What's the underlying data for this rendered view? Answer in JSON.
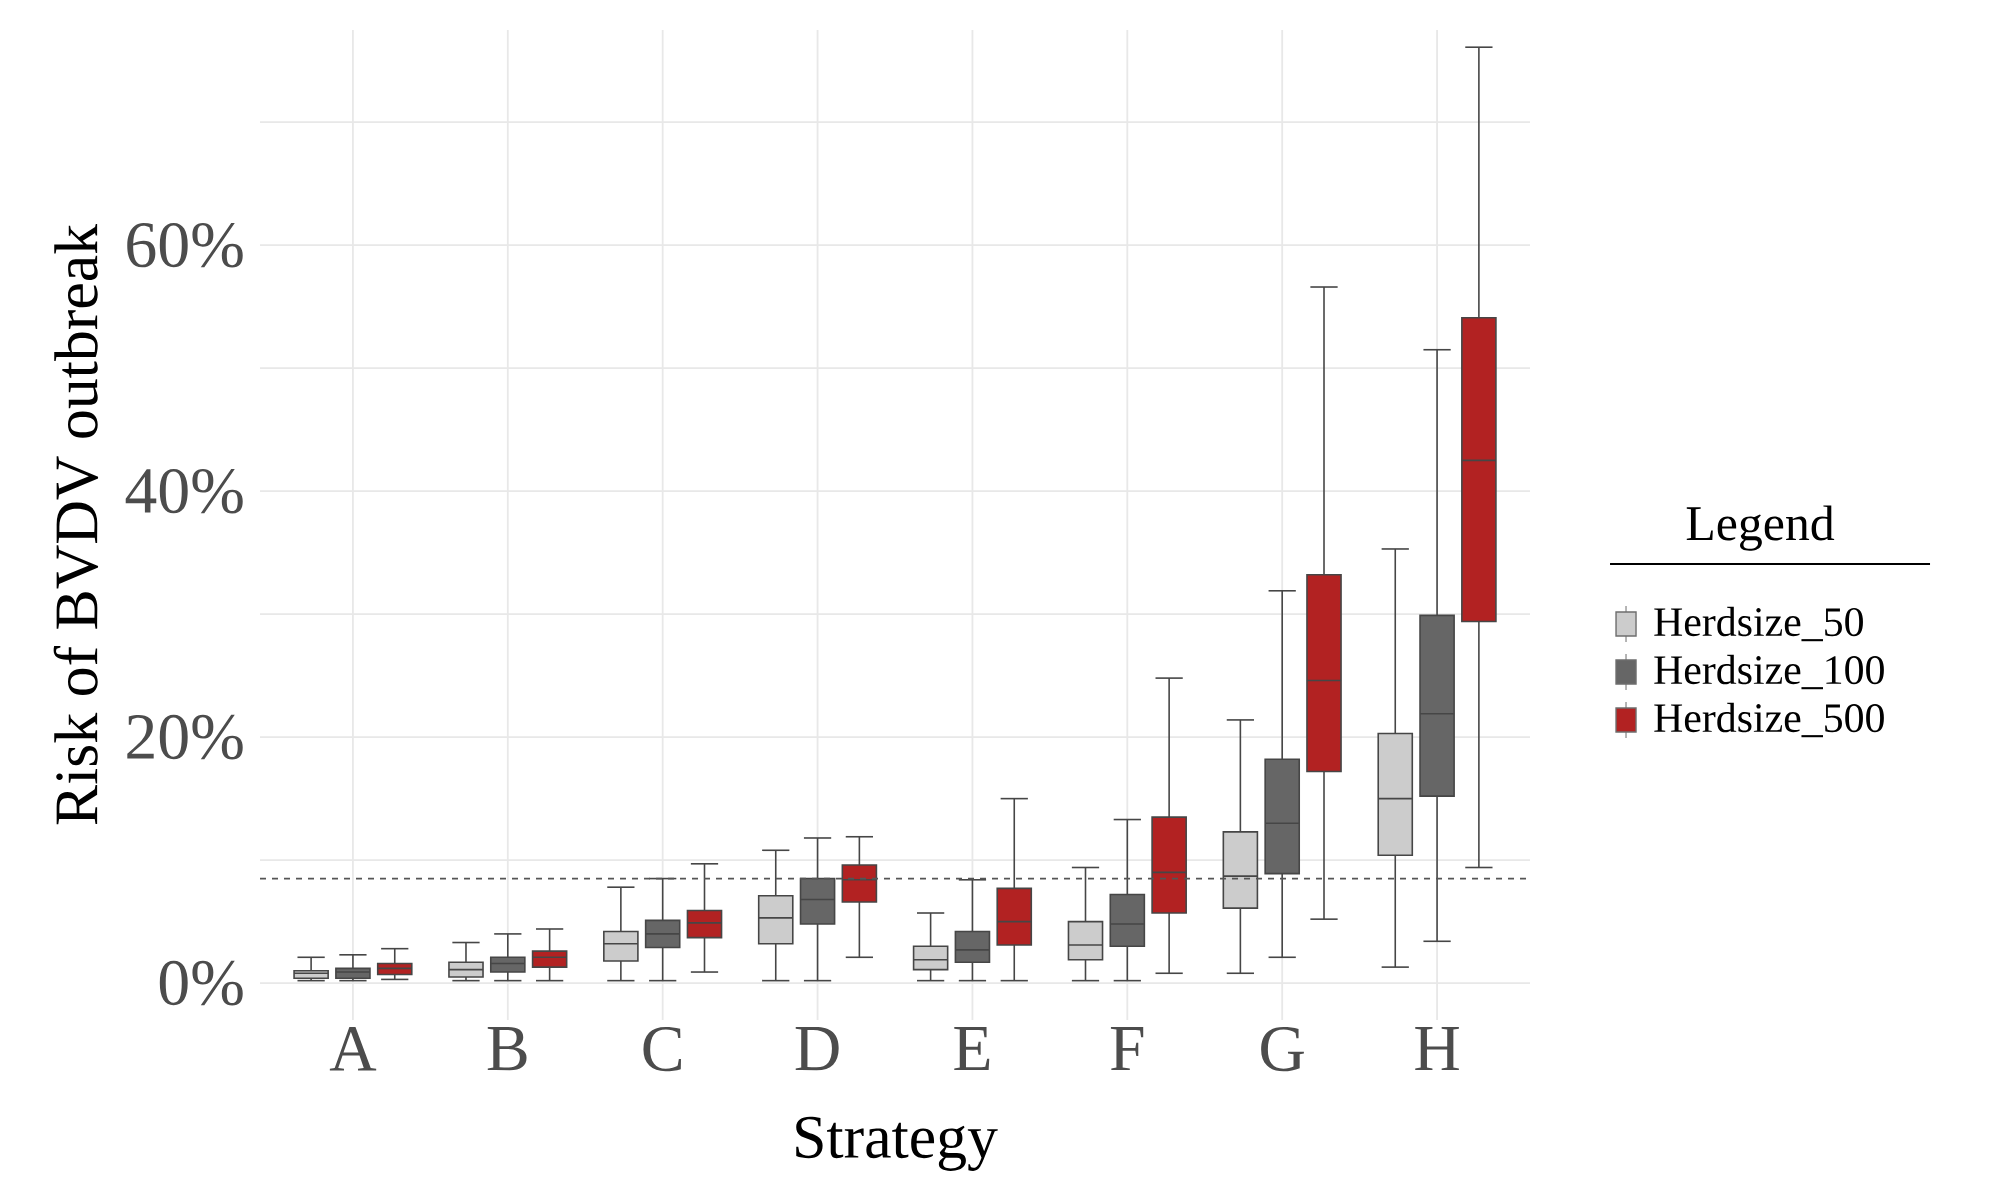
{
  "chart_data": {
    "type": "box",
    "xlabel": "Strategy",
    "ylabel": "Risk of BVDV outbreak",
    "legend_title": "Legend",
    "legend": "right",
    "grid": true,
    "categories": [
      "A",
      "B",
      "C",
      "D",
      "E",
      "F",
      "G",
      "H"
    ],
    "ylim": [
      -3,
      77.5
    ],
    "yticks": [
      {
        "value": 0,
        "label": "0%"
      },
      {
        "value": 10,
        "label": null
      },
      {
        "value": 20,
        "label": "20%"
      },
      {
        "value": 30,
        "label": null
      },
      {
        "value": 40,
        "label": "40%"
      },
      {
        "value": 50,
        "label": null
      },
      {
        "value": 60,
        "label": "60%"
      },
      {
        "value": 70,
        "label": null
      }
    ],
    "ref_lines": [
      {
        "axis": "y",
        "value": 8.5,
        "color": "#555555",
        "line_style": "dashed"
      }
    ],
    "series": [
      {
        "name": "Herdsize_50",
        "color": "#cccccc",
        "boxes": [
          {
            "low": 0.2,
            "q1": 0.4,
            "median": 0.8,
            "q3": 1.0,
            "high": 2.1
          },
          {
            "low": 0.2,
            "q1": 0.5,
            "median": 1.1,
            "q3": 1.7,
            "high": 3.3
          },
          {
            "low": 0.2,
            "q1": 1.8,
            "median": 3.2,
            "q3": 4.2,
            "high": 7.8
          },
          {
            "low": 0.2,
            "q1": 3.2,
            "median": 5.3,
            "q3": 7.1,
            "high": 10.8
          },
          {
            "low": 0.2,
            "q1": 1.1,
            "median": 1.9,
            "q3": 3.0,
            "high": 5.7
          },
          {
            "low": 0.2,
            "q1": 1.9,
            "median": 3.1,
            "q3": 5.0,
            "high": 9.4
          },
          {
            "low": 0.8,
            "q1": 6.1,
            "median": 8.7,
            "q3": 12.3,
            "high": 21.4
          },
          {
            "low": 1.3,
            "q1": 10.4,
            "median": 15.0,
            "q3": 20.3,
            "high": 35.3
          }
        ]
      },
      {
        "name": "Herdsize_100",
        "color": "#666666",
        "boxes": [
          {
            "low": 0.2,
            "q1": 0.4,
            "median": 0.9,
            "q3": 1.2,
            "high": 2.3
          },
          {
            "low": 0.2,
            "q1": 0.9,
            "median": 1.6,
            "q3": 2.1,
            "high": 4.0
          },
          {
            "low": 0.2,
            "q1": 2.9,
            "median": 4.0,
            "q3": 5.1,
            "high": 8.5
          },
          {
            "low": 0.2,
            "q1": 4.8,
            "median": 6.8,
            "q3": 8.5,
            "high": 11.8
          },
          {
            "low": 0.2,
            "q1": 1.7,
            "median": 2.7,
            "q3": 4.2,
            "high": 8.4
          },
          {
            "low": 0.2,
            "q1": 3.0,
            "median": 4.8,
            "q3": 7.2,
            "high": 13.3
          },
          {
            "low": 2.1,
            "q1": 8.9,
            "median": 13.0,
            "q3": 18.2,
            "high": 31.9
          },
          {
            "low": 3.4,
            "q1": 15.2,
            "median": 21.9,
            "q3": 29.9,
            "high": 51.5
          }
        ]
      },
      {
        "name": "Herdsize_500",
        "color": "#b22222",
        "boxes": [
          {
            "low": 0.3,
            "q1": 0.7,
            "median": 1.2,
            "q3": 1.6,
            "high": 2.8
          },
          {
            "low": 0.2,
            "q1": 1.3,
            "median": 2.1,
            "q3": 2.6,
            "high": 4.4
          },
          {
            "low": 0.9,
            "q1": 3.7,
            "median": 4.9,
            "q3": 5.9,
            "high": 9.7
          },
          {
            "low": 2.1,
            "q1": 6.6,
            "median": 8.4,
            "q3": 9.6,
            "high": 11.9
          },
          {
            "low": 0.2,
            "q1": 3.1,
            "median": 5.0,
            "q3": 7.7,
            "high": 15.0
          },
          {
            "low": 0.8,
            "q1": 5.7,
            "median": 9.0,
            "q3": 13.5,
            "high": 24.8
          },
          {
            "low": 5.2,
            "q1": 17.2,
            "median": 24.6,
            "q3": 33.2,
            "high": 56.6
          },
          {
            "low": 9.4,
            "q1": 29.4,
            "median": 42.5,
            "q3": 54.1,
            "high": 76.1
          }
        ]
      }
    ]
  }
}
